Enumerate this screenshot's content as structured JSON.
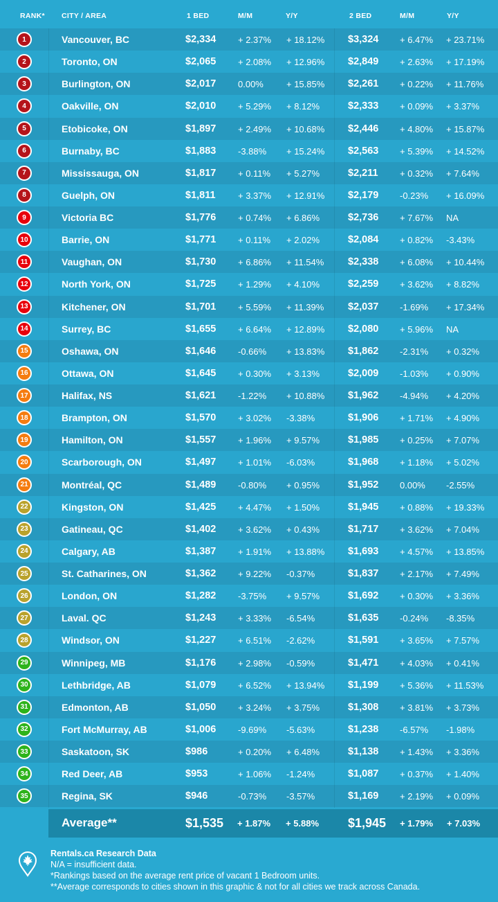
{
  "header": {
    "rank": "RANK*",
    "city": "CITY / AREA",
    "bed1": "1 BED",
    "mm1": "M/M",
    "yy1": "Y/Y",
    "bed2": "2 BED",
    "mm2": "M/M",
    "yy2": "Y/Y"
  },
  "badge_colors": {
    "1-8": "#b5141a",
    "9-14": "#e8000b",
    "15-21": "#f57c0f",
    "22-28": "#b9a22c",
    "29-35": "#2db31b"
  },
  "rows": [
    [
      "1",
      "Vancouver, BC",
      "$2,334",
      "+ 2.37%",
      "+ 18.12%",
      "$3,324",
      "+ 6.47%",
      "+ 23.71%"
    ],
    [
      "2",
      "Toronto, ON",
      "$2,065",
      "+ 2.08%",
      "+ 12.96%",
      "$2,849",
      "+ 2.63%",
      "+ 17.19%"
    ],
    [
      "3",
      "Burlington, ON",
      "$2,017",
      "0.00%",
      "+ 15.85%",
      "$2,261",
      "+ 0.22%",
      "+ 11.76%"
    ],
    [
      "4",
      "Oakville, ON",
      "$2,010",
      "+ 5.29%",
      "+ 8.12%",
      "$2,333",
      "+ 0.09%",
      "+ 3.37%"
    ],
    [
      "5",
      "Etobicoke, ON",
      "$1,897",
      "+ 2.49%",
      "+ 10.68%",
      "$2,446",
      "+ 4.80%",
      "+ 15.87%"
    ],
    [
      "6",
      "Burnaby, BC",
      "$1,883",
      "-3.88%",
      "+ 15.24%",
      "$2,563",
      "+ 5.39%",
      "+ 14.52%"
    ],
    [
      "7",
      "Mississauga, ON",
      "$1,817",
      "+ 0.11%",
      "+ 5.27%",
      "$2,211",
      "+ 0.32%",
      "+ 7.64%"
    ],
    [
      "8",
      "Guelph, ON",
      "$1,811",
      "+ 3.37%",
      "+ 12.91%",
      "$2,179",
      "-0.23%",
      "+ 16.09%"
    ],
    [
      "9",
      "Victoria BC",
      "$1,776",
      "+ 0.74%",
      "+ 6.86%",
      "$2,736",
      "+ 7.67%",
      "NA"
    ],
    [
      "10",
      "Barrie, ON",
      "$1,771",
      "+ 0.11%",
      "+ 2.02%",
      "$2,084",
      "+ 0.82%",
      "-3.43%"
    ],
    [
      "11",
      "Vaughan, ON",
      "$1,730",
      "+ 6.86%",
      "+ 11.54%",
      "$2,338",
      "+ 6.08%",
      "+ 10.44%"
    ],
    [
      "12",
      "North York, ON",
      "$1,725",
      "+ 1.29%",
      "+ 4.10%",
      "$2,259",
      "+ 3.62%",
      "+ 8.82%"
    ],
    [
      "13",
      "Kitchener, ON",
      "$1,701",
      "+ 5.59%",
      "+ 11.39%",
      "$2,037",
      "-1.69%",
      "+ 17.34%"
    ],
    [
      "14",
      "Surrey, BC",
      "$1,655",
      "+ 6.64%",
      "+ 12.89%",
      "$2,080",
      "+ 5.96%",
      "NA"
    ],
    [
      "15",
      "Oshawa, ON",
      "$1,646",
      "-0.66%",
      "+ 13.83%",
      "$1,862",
      "-2.31%",
      "+ 0.32%"
    ],
    [
      "16",
      "Ottawa, ON",
      "$1,645",
      "+ 0.30%",
      "+ 3.13%",
      "$2,009",
      "-1.03%",
      "+ 0.90%"
    ],
    [
      "17",
      "Halifax, NS",
      "$1,621",
      "-1.22%",
      "+ 10.88%",
      "$1,962",
      "-4.94%",
      "+ 4.20%"
    ],
    [
      "18",
      "Brampton, ON",
      "$1,570",
      "+ 3.02%",
      "-3.38%",
      "$1,906",
      "+ 1.71%",
      "+ 4.90%"
    ],
    [
      "19",
      "Hamilton, ON",
      "$1,557",
      "+ 1.96%",
      "+ 9.57%",
      "$1,985",
      "+ 0.25%",
      "+ 7.07%"
    ],
    [
      "20",
      "Scarborough, ON",
      "$1,497",
      "+ 1.01%",
      "-6.03%",
      "$1,968",
      "+ 1.18%",
      "+ 5.02%"
    ],
    [
      "21",
      "Montréal, QC",
      "$1,489",
      "-0.80%",
      "+ 0.95%",
      "$1,952",
      "0.00%",
      "-2.55%"
    ],
    [
      "22",
      "Kingston, ON",
      "$1,425",
      "+ 4.47%",
      "+ 1.50%",
      "$1,945",
      "+ 0.88%",
      "+ 19.33%"
    ],
    [
      "23",
      "Gatineau, QC",
      "$1,402",
      "+ 3.62%",
      "+ 0.43%",
      "$1,717",
      "+ 3.62%",
      "+ 7.04%"
    ],
    [
      "24",
      "Calgary, AB",
      "$1,387",
      "+ 1.91%",
      "+ 13.88%",
      "$1,693",
      "+ 4.57%",
      "+ 13.85%"
    ],
    [
      "25",
      "St. Catharines, ON",
      "$1,362",
      "+ 9.22%",
      "-0.37%",
      "$1,837",
      "+ 2.17%",
      "+ 7.49%"
    ],
    [
      "26",
      "London, ON",
      "$1,282",
      "-3.75%",
      "+ 9.57%",
      "$1,692",
      "+ 0.30%",
      "+ 3.36%"
    ],
    [
      "27",
      "Laval. QC",
      "$1,243",
      "+ 3.33%",
      "-6.54%",
      "$1,635",
      "-0.24%",
      "-8.35%"
    ],
    [
      "28",
      "Windsor, ON",
      "$1,227",
      "+ 6.51%",
      "-2.62%",
      "$1,591",
      "+ 3.65%",
      "+ 7.57%"
    ],
    [
      "29",
      "Winnipeg, MB",
      "$1,176",
      "+ 2.98%",
      "-0.59%",
      "$1,471",
      "+ 4.03%",
      "+ 0.41%"
    ],
    [
      "30",
      "Lethbridge, AB",
      "$1,079",
      "+ 6.52%",
      "+ 13.94%",
      "$1,199",
      "+ 5.36%",
      "+ 11.53%"
    ],
    [
      "31",
      "Edmonton, AB",
      "$1,050",
      "+ 3.24%",
      "+ 3.75%",
      "$1,308",
      "+ 3.81%",
      "+ 3.73%"
    ],
    [
      "32",
      "Fort McMurray, AB",
      "$1,006",
      "-9.69%",
      "-5.63%",
      "$1,238",
      "-6.57%",
      "-1.98%"
    ],
    [
      "33",
      "Saskatoon, SK",
      "$986",
      "+ 0.20%",
      "+ 6.48%",
      "$1,138",
      "+ 1.43%",
      "+ 3.36%"
    ],
    [
      "34",
      "Red Deer, AB",
      "$953",
      "+ 1.06%",
      "-1.24%",
      "$1,087",
      "+ 0.37%",
      "+ 1.40%"
    ],
    [
      "35",
      "Regina, SK",
      "$946",
      "-0.73%",
      "-3.57%",
      "$1,169",
      "+ 2.19%",
      "+ 0.09%"
    ]
  ],
  "average": {
    "label": "Average**",
    "bed1": "$1,535",
    "mm1": "+ 1.87%",
    "yy1": "+ 5.88%",
    "bed2": "$1,945",
    "mm2": "+ 1.79%",
    "yy2": "+ 7.03%"
  },
  "footer": {
    "title": "Rentals.ca Research Data",
    "line1": "N/A = insufficient data.",
    "line2": "*Rankings based on the average rent price of vacant 1 Bedroom units.",
    "line3": "**Average corresponds to cities shown in this graphic & not for all cities we track across Canada.",
    "icon": "map-pin-maple-leaf-icon"
  }
}
